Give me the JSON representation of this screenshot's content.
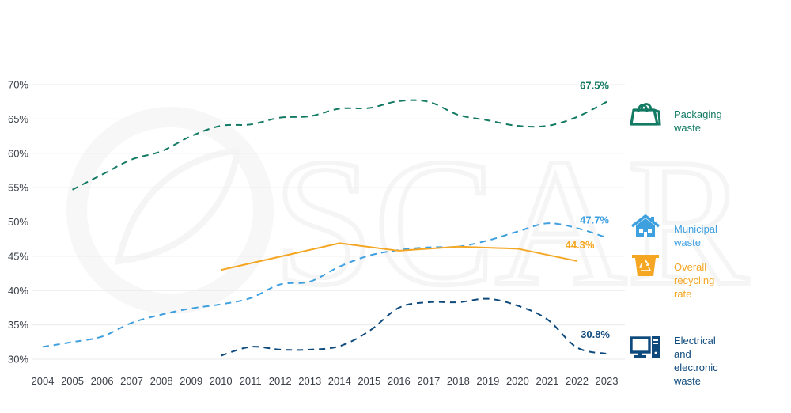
{
  "chart_data": {
    "type": "line",
    "title": "",
    "xlabel": "",
    "ylabel": "",
    "x": [
      2004,
      2005,
      2006,
      2007,
      2008,
      2009,
      2010,
      2011,
      2012,
      2013,
      2014,
      2015,
      2016,
      2017,
      2018,
      2019,
      2020,
      2021,
      2022,
      2023
    ],
    "ylim": [
      30,
      70
    ],
    "y_ticks": [
      30,
      35,
      40,
      45,
      50,
      55,
      60,
      65,
      70
    ],
    "y_tick_labels": [
      "30%",
      "35%",
      "40%",
      "45%",
      "50%",
      "55%",
      "60%",
      "65%",
      "70%"
    ],
    "x_tick_labels": [
      "2004",
      "2005",
      "2006",
      "2007",
      "2008",
      "2009",
      "2010",
      "2011",
      "2012",
      "2013",
      "2014",
      "2015",
      "2016",
      "2017",
      "2018",
      "2019",
      "2020",
      "2021",
      "2022",
      "2023"
    ],
    "grid": "horizontal",
    "legend_placement": "right",
    "series": [
      {
        "name": "Packaging waste",
        "key": "packaging",
        "color": "#137a63",
        "dashed": true,
        "icon": "shopping-bag-icon",
        "end_label": "67.5%",
        "values": [
          null,
          54.7,
          56.9,
          59.1,
          60.3,
          62.5,
          64.0,
          64.2,
          65.2,
          65.4,
          66.5,
          66.6,
          67.6,
          67.5,
          65.6,
          64.8,
          64.0,
          64.0,
          65.3,
          67.5
        ]
      },
      {
        "name": "Municipal waste",
        "key": "municipal",
        "color": "#3fa0e0",
        "dashed": true,
        "icon": "house-icon",
        "end_label": "47.7%",
        "values": [
          31.8,
          32.5,
          33.3,
          35.3,
          36.5,
          37.4,
          38.0,
          38.9,
          40.9,
          41.3,
          43.5,
          45.1,
          45.9,
          46.3,
          46.4,
          47.3,
          48.6,
          49.8,
          49.1,
          47.7
        ]
      },
      {
        "name": "Overall recycling rate",
        "key": "overall",
        "color": "#f5a623",
        "dashed": false,
        "icon": "recycling-bin-icon",
        "end_label": "44.3%",
        "values": [
          null,
          null,
          null,
          null,
          null,
          null,
          43.0,
          null,
          null,
          null,
          46.9,
          null,
          45.8,
          null,
          46.4,
          null,
          46.1,
          null,
          44.3,
          null
        ]
      },
      {
        "name": "Electrical and\nelectronic waste",
        "key": "electronic",
        "color": "#0f4a7d",
        "dashed": true,
        "icon": "desktop-computer-icon",
        "end_label": "30.8%",
        "values": [
          null,
          null,
          null,
          null,
          null,
          null,
          30.5,
          31.8,
          31.4,
          31.4,
          31.9,
          34.1,
          37.5,
          38.3,
          38.3,
          38.8,
          37.8,
          35.8,
          31.7,
          30.8
        ]
      }
    ]
  },
  "watermark": {
    "text": "SCAR"
  }
}
